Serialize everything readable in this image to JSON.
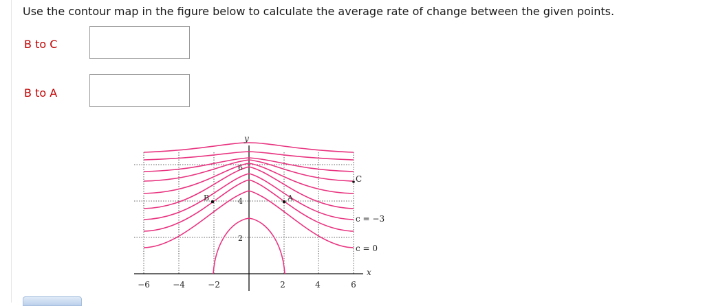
{
  "question": {
    "text": "Use the contour map in the figure below to calculate the average rate of change between the given points."
  },
  "answers": [
    {
      "label": "B to C",
      "value": ""
    },
    {
      "label": "B to A",
      "value": ""
    }
  ],
  "figure": {
    "y_axis_label": "y",
    "x_axis_label": "x",
    "x_ticks": [
      "−6",
      "−4",
      "−2",
      "2",
      "4",
      "6"
    ],
    "contour_labels": {
      "c6": "6",
      "c4": "4",
      "c2": "2"
    },
    "point_labels": {
      "B": "B",
      "A": "A",
      "C": "C"
    },
    "level_labels": {
      "c_neg3": "c = −3",
      "c_0": "c = 0"
    },
    "curve_color": "#e8337f"
  }
}
